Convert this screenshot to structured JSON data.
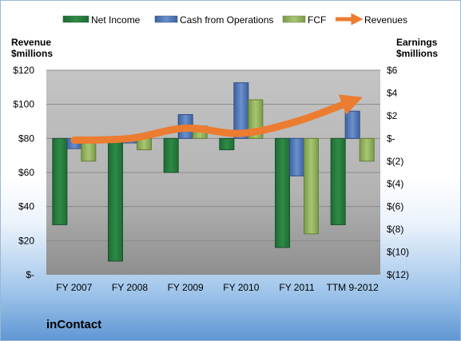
{
  "company": "inContact",
  "colors": {
    "net_income": "#2e8b45",
    "cash_ops": "#4f78b8",
    "fcf": "#93b25e",
    "revenue": "#ec7c30"
  },
  "chart_data": {
    "type": "bar",
    "categories": [
      "FY 2007",
      "FY 2008",
      "FY 2009",
      "FY 2010",
      "FY 2011",
      "TTM 9-2012"
    ],
    "left_axis": {
      "title": [
        "Revenue",
        "$millions"
      ],
      "ylim": [
        0,
        120
      ],
      "ticks": [
        0,
        20,
        40,
        60,
        80,
        100,
        120
      ],
      "tick_labels": [
        "$-",
        "$20",
        "$40",
        "$60",
        "$80",
        "$100",
        "$120"
      ]
    },
    "right_axis": {
      "title": [
        "Earnings",
        "$millions"
      ],
      "ylim": [
        -12,
        6
      ],
      "ticks": [
        -12,
        -10,
        -8,
        -6,
        -4,
        -2,
        0,
        2,
        4,
        6
      ],
      "tick_labels": [
        "$(12)",
        "$(10)",
        "$(8)",
        "$(6)",
        "$(4)",
        "$(2)",
        "$-",
        "$2",
        "$4",
        "$6"
      ]
    },
    "series": [
      {
        "name": "Net Income",
        "type": "bar",
        "axis": "right",
        "values": [
          -7.6,
          -10.8,
          -3.0,
          -1.0,
          -9.6,
          -7.6
        ]
      },
      {
        "name": "Cash from Operations",
        "type": "bar",
        "axis": "right",
        "values": [
          -0.9,
          -0.4,
          2.1,
          4.9,
          -3.3,
          2.4
        ]
      },
      {
        "name": "FCF",
        "type": "bar",
        "axis": "right",
        "values": [
          -2.0,
          -1.0,
          1.1,
          3.4,
          -8.4,
          -2.0
        ]
      },
      {
        "name": "Revenues",
        "type": "line",
        "axis": "left",
        "values": [
          79,
          80,
          86,
          83,
          90,
          102
        ]
      }
    ],
    "grid": true,
    "legend_position": "top"
  }
}
